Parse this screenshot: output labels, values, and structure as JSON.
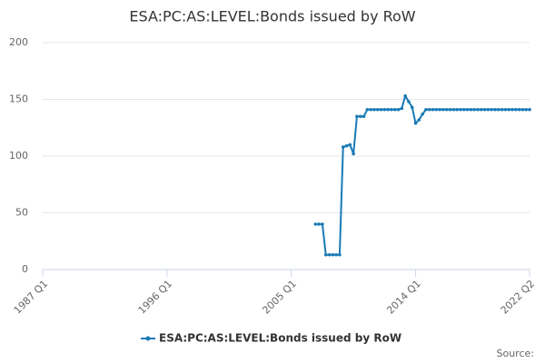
{
  "chart_data": {
    "type": "line",
    "title": "ESA:PC:AS:LEVEL:Bonds issued by RoW",
    "source_label": "Source:",
    "x": [
      2006.75,
      2007,
      2007.25,
      2007.5,
      2007.75,
      2008,
      2008.25,
      2008.5,
      2008.75,
      2009,
      2009.25,
      2009.5,
      2009.75,
      2010,
      2010.25,
      2010.5,
      2010.75,
      2011,
      2011.25,
      2011.5,
      2011.75,
      2012,
      2012.25,
      2012.5,
      2012.75,
      2013,
      2013.25,
      2013.5,
      2013.75,
      2014,
      2014.25,
      2014.5,
      2014.75,
      2015,
      2015.25,
      2015.5,
      2015.75,
      2016,
      2016.25,
      2016.5,
      2016.75,
      2017,
      2017.25,
      2017.5,
      2017.75,
      2018,
      2018.25,
      2018.5,
      2018.75,
      2019,
      2019.25,
      2019.5,
      2019.75,
      2020,
      2020.25,
      2020.5,
      2020.75,
      2021,
      2021.25,
      2021.5,
      2021.75,
      2022,
      2022.25
    ],
    "series": [
      {
        "name": "ESA:PC:AS:LEVEL:Bonds issued by RoW",
        "color": "#1a7ab5",
        "values": [
          40,
          40,
          40,
          13,
          13,
          13,
          13,
          13,
          108,
          109,
          110,
          102,
          135,
          135,
          135,
          141,
          141,
          141,
          141,
          141,
          141,
          141,
          141,
          141,
          141,
          142,
          153,
          148,
          143,
          129,
          132,
          137,
          141,
          141,
          141,
          141,
          141,
          141,
          141,
          141,
          141,
          141,
          141,
          141,
          141,
          141,
          141,
          141,
          141,
          141,
          141,
          141,
          141,
          141,
          141,
          141,
          141,
          141,
          141,
          141,
          141,
          141,
          141
        ]
      }
    ],
    "xlim": [
      1987,
      2022.25
    ],
    "xticks": [
      {
        "value": 1987,
        "label": "1987 Q1"
      },
      {
        "value": 1996,
        "label": "1996 Q1"
      },
      {
        "value": 2005,
        "label": "2005 Q1"
      },
      {
        "value": 2014,
        "label": "2014 Q1"
      },
      {
        "value": 2022.25,
        "label": "2022 Q2"
      }
    ],
    "ylim": [
      0,
      200
    ],
    "yticks": [
      0,
      50,
      100,
      150,
      200
    ],
    "grid": true,
    "legend": "bottom"
  }
}
